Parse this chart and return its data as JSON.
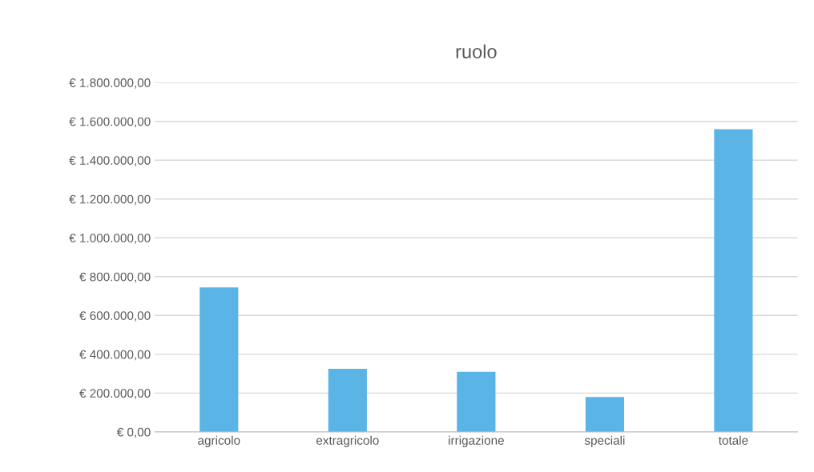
{
  "chart_data": {
    "type": "bar",
    "title": "ruolo",
    "categories": [
      "agricolo",
      "extragricolo",
      "irrigazione",
      "speciali",
      "totale"
    ],
    "values": [
      745000,
      325000,
      310000,
      180000,
      1560000
    ],
    "color": "#5ab4e5",
    "ylim": [
      0,
      1800000
    ],
    "yticks": [
      {
        "value": 0,
        "label": "€ 0,00"
      },
      {
        "value": 200000,
        "label": "€ 200.000,00"
      },
      {
        "value": 400000,
        "label": "€ 400.000,00"
      },
      {
        "value": 600000,
        "label": "€ 600.000,00"
      },
      {
        "value": 800000,
        "label": "€ 800.000,00"
      },
      {
        "value": 1000000,
        "label": "€ 1.000.000,00"
      },
      {
        "value": 1200000,
        "label": "€ 1.200.000,00"
      },
      {
        "value": 1400000,
        "label": "€ 1.400.000,00"
      },
      {
        "value": 1600000,
        "label": "€ 1.600.000,00"
      },
      {
        "value": 1800000,
        "label": "€ 1.800.000,00"
      }
    ],
    "grid": "y"
  }
}
